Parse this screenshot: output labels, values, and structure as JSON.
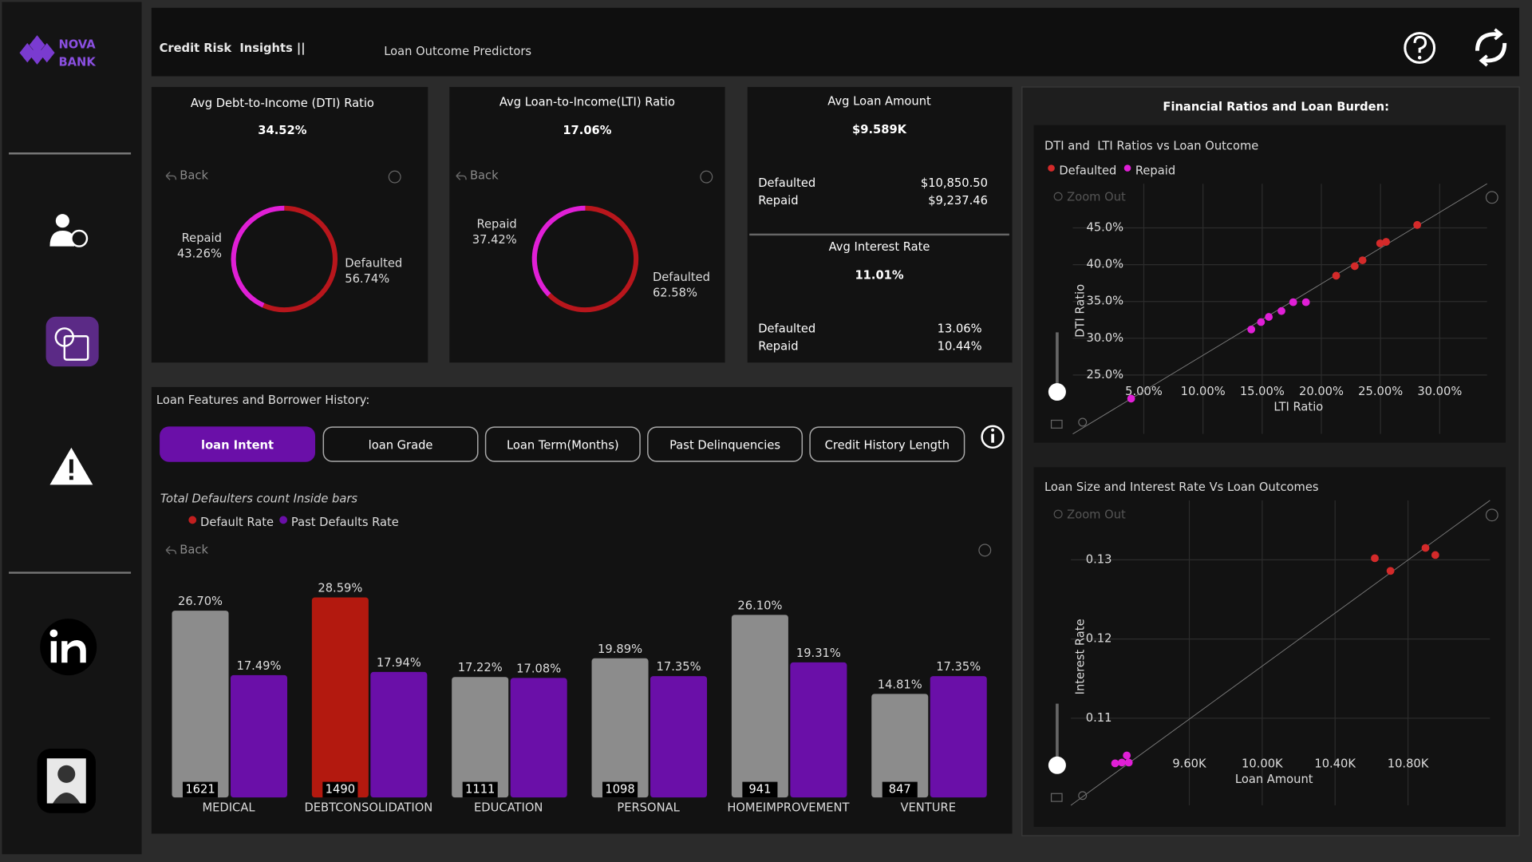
{
  "sidebar": {
    "logo_top": "NOVA",
    "logo_bottom": "BANK"
  },
  "header": {
    "title": "Credit Risk  Insights ||",
    "subtitle": "Loan Outcome Predictors"
  },
  "ui": {
    "back": "Back",
    "zoom_out": "Zoom Out"
  },
  "dti": {
    "title": "Avg Debt-to-Income (DTI) Ratio",
    "value": "34.52%",
    "slices": [
      {
        "name": "Repaid",
        "value": 43.26,
        "label": "43.26%",
        "color": "#e01fd6"
      },
      {
        "name": "Defaulted",
        "value": 56.74,
        "label": "56.74%",
        "color": "#b8161c"
      }
    ]
  },
  "lti": {
    "title": "Avg Loan-to-Income(LTI) Ratio",
    "value": "17.06%",
    "slices": [
      {
        "name": "Repaid",
        "value": 37.42,
        "label": "37.42%",
        "color": "#e01fd6"
      },
      {
        "name": "Defaulted",
        "value": 62.58,
        "label": "62.58%",
        "color": "#b8161c"
      }
    ]
  },
  "loan_amount": {
    "title": "Avg Loan Amount",
    "value": "$9.589K",
    "rows": [
      {
        "label": "Defaulted",
        "value": "$10,850.50"
      },
      {
        "label": "Repaid",
        "value": "$9,237.46"
      }
    ]
  },
  "interest_rate": {
    "title": "Avg Interest Rate",
    "value": "11.01%",
    "rows": [
      {
        "label": "Defaulted",
        "value": "13.06%"
      },
      {
        "label": "Repaid",
        "value": "10.44%"
      }
    ]
  },
  "features": {
    "title": "Loan Features and Borrower History:",
    "tabs": [
      "loan Intent",
      "loan Grade",
      "Loan Term(Months)",
      "Past Delinquencies",
      "Credit History Length"
    ],
    "active_tab": 0,
    "note": "Total Defaulters count Inside bars"
  },
  "bar_chart": {
    "type": "bar",
    "categories": [
      "MEDICAL",
      "DEBTCONSOLIDATION",
      "EDUCATION",
      "PERSONAL",
      "HOMEIMPROVEMENT",
      "VENTURE"
    ],
    "series": [
      {
        "name": "Default Rate",
        "color": "#c21f1f",
        "colors": [
          "#8c8c8c",
          "#b3190f",
          "#8c8c8c",
          "#8c8c8c",
          "#8c8c8c",
          "#8c8c8c"
        ],
        "values": [
          26.7,
          28.59,
          17.22,
          19.89,
          26.1,
          14.81
        ],
        "value_labels": [
          "26.70%",
          "28.59%",
          "17.22%",
          "19.89%",
          "26.10%",
          "14.81%"
        ]
      },
      {
        "name": "Past Defaults Rate",
        "color": "#6a0fa8",
        "values": [
          17.49,
          17.94,
          17.08,
          17.35,
          19.31,
          17.35
        ],
        "value_labels": [
          "17.49%",
          "17.94%",
          "17.08%",
          "17.35%",
          "19.31%",
          "17.35%"
        ]
      }
    ],
    "counts": [
      1621,
      1490,
      1111,
      1098,
      941,
      847
    ]
  },
  "ratios_panel": {
    "title": "Financial Ratios and Loan Burden:"
  },
  "scatter_ratios": {
    "type": "scatter",
    "title": "DTI and  LTI Ratios vs Loan Outcome",
    "x_label": "LTI Ratio",
    "y_label": "DTI Ratio",
    "xlim": [
      -1,
      34
    ],
    "ylim": [
      17,
      51
    ],
    "xticks": [
      {
        "value": 5,
        "label": "5.00%"
      },
      {
        "value": 10,
        "label": "10.00%"
      },
      {
        "value": 15,
        "label": "15.00%"
      },
      {
        "value": 20,
        "label": "20.00%"
      },
      {
        "value": 25,
        "label": "25.00%"
      },
      {
        "value": 30,
        "label": "30.00%"
      }
    ],
    "yticks": [
      {
        "value": 25,
        "label": "25.0%"
      },
      {
        "value": 30,
        "label": "30.0%"
      },
      {
        "value": 35,
        "label": "35.0%"
      },
      {
        "value": 40,
        "label": "40.0%"
      },
      {
        "value": 45,
        "label": "45.0%"
      }
    ],
    "series": [
      {
        "name": "Defaulted",
        "color": "#d42a2a",
        "x": [
          21.25,
          22.82,
          23.48,
          24.97,
          25.47,
          28.1
        ],
        "y": [
          38.5,
          39.8,
          40.6,
          42.9,
          43.1,
          45.4
        ]
      },
      {
        "name": "Repaid",
        "color": "#e01fd6",
        "x": [
          3.93,
          14.08,
          14.9,
          15.56,
          16.63,
          17.62,
          18.7
        ],
        "y": [
          21.8,
          31.2,
          32.2,
          32.9,
          33.7,
          34.9,
          34.9
        ]
      }
    ]
  },
  "scatter_size": {
    "type": "scatter",
    "title": "Loan Size and Interest Rate Vs Loan Outcomes",
    "x_label": "Loan Amount",
    "y_label": "Interest Rate",
    "xlim": [
      8950,
      11250
    ],
    "ylim": [
      0.099,
      0.1375
    ],
    "xticks": [
      {
        "value": 9600,
        "label": "9.60K"
      },
      {
        "value": 10000,
        "label": "10.00K"
      },
      {
        "value": 10400,
        "label": "10.40K"
      },
      {
        "value": 10800,
        "label": "10.80K"
      }
    ],
    "yticks": [
      0.11,
      0.12,
      0.13
    ],
    "series": [
      {
        "name": "Defaulted",
        "color": "#d42a2a",
        "x": [
          10618,
          10704,
          10896,
          10950
        ],
        "y": [
          0.1302,
          0.1286,
          0.1315,
          0.1306
        ]
      },
      {
        "name": "Repaid",
        "color": "#e01fd6",
        "x": [
          9193,
          9230,
          9257,
          9268
        ],
        "y": [
          0.1043,
          0.1044,
          0.1053,
          0.1044
        ]
      }
    ]
  }
}
